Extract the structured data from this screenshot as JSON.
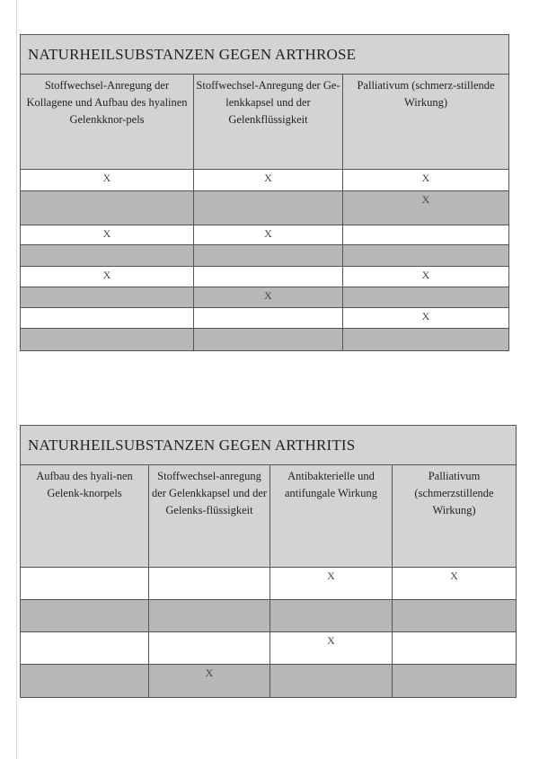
{
  "tables": [
    {
      "title": "NATURHEILSUBSTANZEN GEGEN ARTHROSE",
      "columns": [
        "Stoffwechsel-Anregung der Kollagene und Aufbau des hyalinen Gelenkknor-pels",
        "Stoffwechsel-Anregung der Ge-lenkkapsel und der Gelenkflüssigkeit",
        "Palliativum (schmerz-stillende Wirkung)"
      ],
      "rows": [
        [
          "X",
          "X",
          "X"
        ],
        [
          "",
          "",
          "X"
        ],
        [
          "X",
          "X",
          ""
        ],
        [
          "",
          "",
          ""
        ],
        [
          "X",
          "",
          "X"
        ],
        [
          "",
          "X",
          ""
        ],
        [
          "",
          "",
          "X"
        ],
        [
          "",
          "",
          ""
        ]
      ]
    },
    {
      "title": "NATURHEILSUBSTANZEN GEGEN ARTHRITIS",
      "columns": [
        "Aufbau des hyali-nen Gelenk-knorpels",
        "Stoffwechsel-anregung der Gelenkkapsel und der Gelenks-flüssigkeit",
        "Antibakterielle und antifungale Wirkung",
        "Palliativum (schmerzstillende Wirkung)"
      ],
      "rows": [
        [
          "",
          "",
          "X",
          "X"
        ],
        [
          "",
          "",
          "",
          ""
        ],
        [
          "",
          "",
          "X",
          ""
        ],
        [
          "",
          "X",
          "",
          ""
        ]
      ]
    }
  ]
}
